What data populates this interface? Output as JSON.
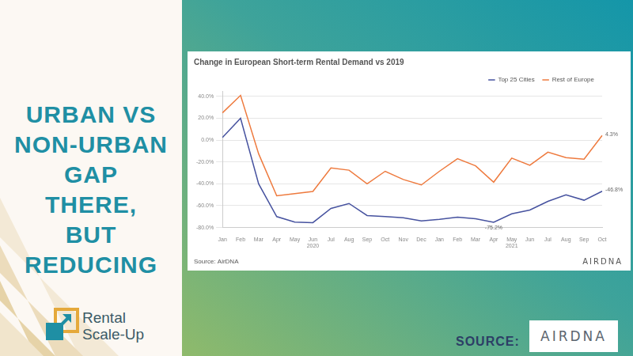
{
  "slide": {
    "heading": [
      "URBAN VS",
      "NON-URBAN",
      "GAP",
      "THERE,",
      "BUT",
      "REDUCING"
    ],
    "logo": [
      "Rental",
      "Scale-Up"
    ],
    "source_label": "SOURCE:",
    "source_logo": "AIRDNA"
  },
  "chart_data": {
    "type": "line",
    "title": "Change in European Short-term Rental Demand vs 2019",
    "source": "Source: AirDNA",
    "watermark": "AIRDNA",
    "categories": [
      "Jan",
      "Feb",
      "Mar",
      "Apr",
      "May",
      "Jun",
      "Jul",
      "Aug",
      "Sep",
      "Oct",
      "Nov",
      "Dec",
      "Jan",
      "Feb",
      "Mar",
      "Apr",
      "May",
      "Jun",
      "Jul",
      "Aug",
      "Sep",
      "Oct"
    ],
    "year_labels": [
      null,
      null,
      null,
      null,
      null,
      "2020",
      null,
      null,
      null,
      null,
      null,
      null,
      null,
      null,
      null,
      null,
      "2021",
      null,
      null,
      null,
      null,
      null
    ],
    "series": [
      {
        "name": "Top 25 Cities",
        "color": "#46529f",
        "values": [
          2.5,
          20,
          -40,
          -70,
          -75,
          -75.5,
          -62.5,
          -58,
          -69,
          -70,
          -71,
          -74,
          -72.5,
          -70.5,
          -72,
          -75.2,
          -67.5,
          -64,
          -56,
          -50,
          -55,
          -46.8
        ],
        "value_labels": [
          null,
          null,
          null,
          null,
          null,
          null,
          null,
          null,
          null,
          null,
          null,
          null,
          null,
          null,
          null,
          "-75.2%",
          null,
          null,
          null,
          null,
          null,
          "-46.8%"
        ]
      },
      {
        "name": "Rest of Europe",
        "color": "#ee7a3e",
        "values": [
          25,
          41,
          -12.5,
          -51,
          -49,
          -47,
          -25.5,
          -27.5,
          -40,
          -28.5,
          -36,
          -41,
          -28.5,
          -17,
          -23.5,
          -38.5,
          -16.5,
          -23,
          -11,
          -16,
          -17.5,
          4.3
        ],
        "value_labels": [
          null,
          null,
          null,
          null,
          null,
          null,
          null,
          null,
          null,
          null,
          null,
          null,
          null,
          null,
          null,
          null,
          null,
          null,
          null,
          null,
          null,
          "4.3%"
        ]
      }
    ],
    "ylim": [
      -80,
      45
    ],
    "yticks": [
      {
        "value": -80,
        "label": "-80.0%"
      },
      {
        "value": -60,
        "label": "-60.0%"
      },
      {
        "value": -40,
        "label": "-40.0%"
      },
      {
        "value": -20,
        "label": "-20.0%"
      },
      {
        "value": 0,
        "label": "0.0%"
      },
      {
        "value": 20,
        "label": "20.0%"
      },
      {
        "value": 40,
        "label": "40.0%"
      }
    ],
    "grid": true,
    "legend": "top-right"
  }
}
